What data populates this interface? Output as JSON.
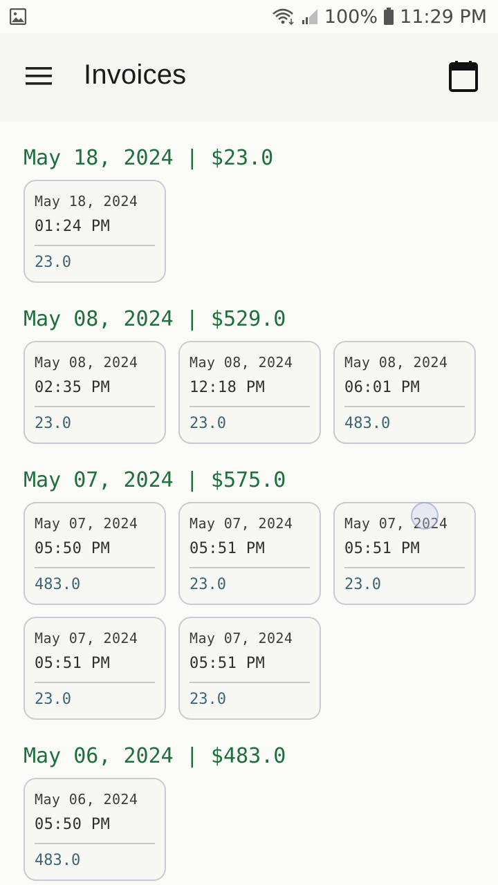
{
  "status_bar": {
    "battery": "100%",
    "time": "11:29 PM",
    "icons": [
      "image-icon",
      "wifi-icon",
      "signal-icon",
      "battery-icon"
    ]
  },
  "app_bar": {
    "title": "Invoices",
    "menu_icon": "hamburger-menu-icon",
    "calendar_icon": "calendar-icon"
  },
  "groups": [
    {
      "header": "May 18, 2024 | $23.0",
      "invoices": [
        {
          "date": "May 18, 2024",
          "time": "01:24 PM",
          "amount": "23.0"
        }
      ]
    },
    {
      "header": "May 08, 2024 | $529.0",
      "invoices": [
        {
          "date": "May 08, 2024",
          "time": "02:35 PM",
          "amount": "23.0"
        },
        {
          "date": "May 08, 2024",
          "time": "12:18 PM",
          "amount": "23.0"
        },
        {
          "date": "May 08, 2024",
          "time": "06:01 PM",
          "amount": "483.0"
        }
      ]
    },
    {
      "header": "May 07, 2024 | $575.0",
      "invoices": [
        {
          "date": "May 07, 2024",
          "time": "05:50 PM",
          "amount": "483.0"
        },
        {
          "date": "May 07, 2024",
          "time": "05:51 PM",
          "amount": "23.0"
        },
        {
          "date": "May 07, 2024",
          "time": "05:51 PM",
          "amount": "23.0"
        },
        {
          "date": "May 07, 2024",
          "time": "05:51 PM",
          "amount": "23.0"
        },
        {
          "date": "May 07, 2024",
          "time": "05:51 PM",
          "amount": "23.0"
        }
      ]
    },
    {
      "header": "May 06, 2024 | $483.0",
      "invoices": [
        {
          "date": "May 06, 2024",
          "time": "05:50 PM",
          "amount": "483.0"
        }
      ]
    }
  ],
  "colors": {
    "background": "#fbfcf7",
    "app_bar": "#f6f6f2",
    "group_header": "#1f6e3e",
    "card_border": "#c9cbd3",
    "amount": "#3e6475"
  }
}
